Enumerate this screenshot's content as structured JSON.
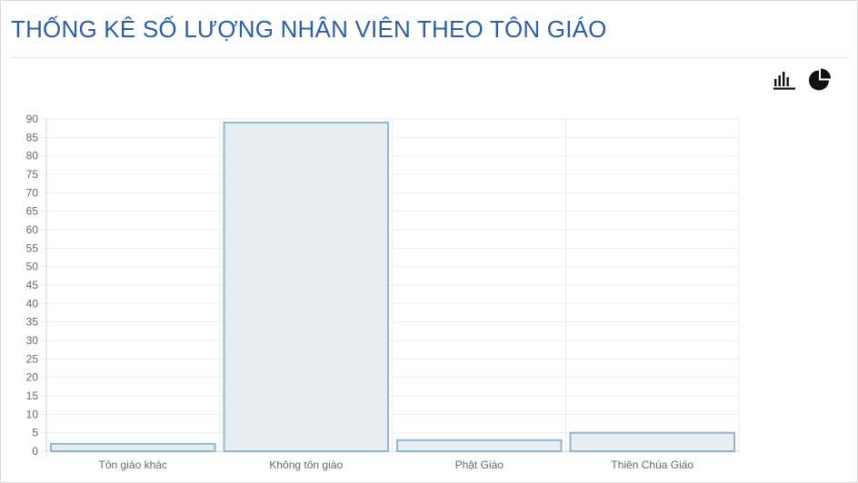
{
  "page": {
    "title": "THỐNG KÊ SỐ LƯỢNG NHÂN VIÊN THEO TÔN GIÁO"
  },
  "toolbar": {
    "bar_chart_icon": "bar-chart-icon",
    "pie_chart_icon": "pie-chart-icon"
  },
  "chart_data": {
    "type": "bar",
    "title": "",
    "xlabel": "",
    "ylabel": "",
    "categories": [
      "Tôn giáo khác",
      "Không tôn giáo",
      "Phật Giáo",
      "Thiên Chúa Giáo"
    ],
    "values": [
      2,
      89,
      3,
      5
    ],
    "ylim": [
      0,
      90
    ],
    "yticks": [
      0,
      5,
      10,
      15,
      20,
      25,
      30,
      35,
      40,
      45,
      50,
      55,
      60,
      65,
      70,
      75,
      80,
      85,
      90
    ],
    "grid": true,
    "legend": "none",
    "colors": {
      "bar_fill": "#e7eef2",
      "bar_stroke": "#8fb8cf",
      "grid": "#eeeeee",
      "axis": "#d6d6d6",
      "text": "#666666",
      "title": "#2a5fa8"
    }
  }
}
